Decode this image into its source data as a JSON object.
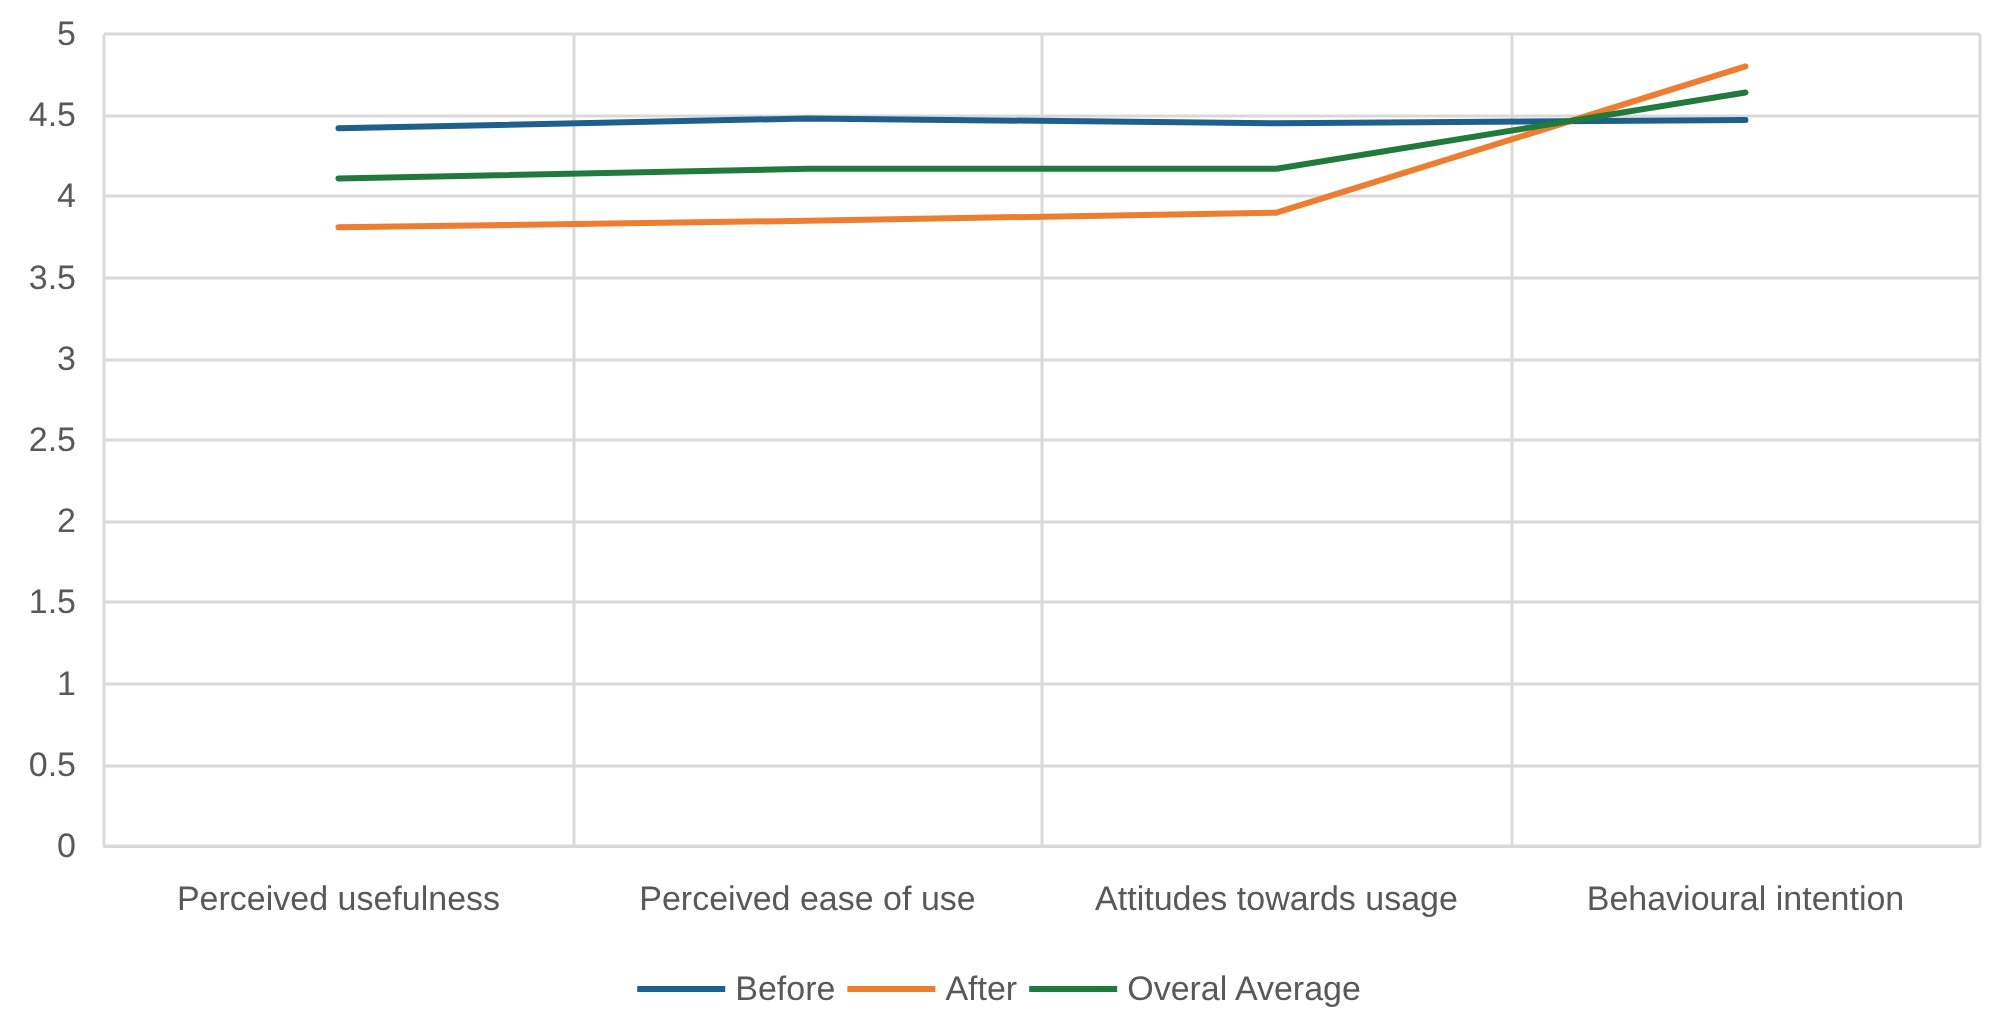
{
  "chart_data": {
    "type": "line",
    "categories": [
      "Perceived usefulness",
      "Perceived ease of use",
      "Attitudes towards usage",
      "Behavioural intention"
    ],
    "series": [
      {
        "name": "Before",
        "color": "#1f5f8b",
        "values": [
          4.42,
          4.48,
          4.45,
          4.47
        ]
      },
      {
        "name": "After",
        "color": "#ed7d31",
        "values": [
          3.81,
          3.85,
          3.9,
          4.8
        ]
      },
      {
        "name": "Overal Average",
        "color": "#217a3c",
        "values": [
          4.11,
          4.17,
          4.17,
          4.64
        ]
      }
    ],
    "ylim": [
      0,
      5
    ],
    "yticks": [
      0,
      0.5,
      1,
      1.5,
      2,
      2.5,
      3,
      3.5,
      4,
      4.5,
      5
    ],
    "grid": true,
    "legend": "bottom",
    "marker": "none",
    "line_style": "solid"
  }
}
